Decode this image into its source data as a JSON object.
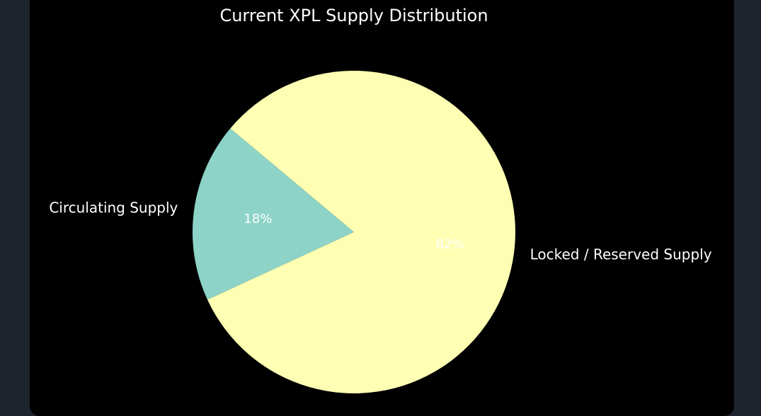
{
  "chart_data": {
    "type": "pie",
    "title": "Current XPL Supply Distribution",
    "categories": [
      "Circulating Supply",
      "Locked / Reserved Supply"
    ],
    "values": [
      18,
      82
    ],
    "value_labels": [
      "18%",
      "82%"
    ],
    "colors": [
      "#8dd3c7",
      "#ffffb3"
    ]
  }
}
